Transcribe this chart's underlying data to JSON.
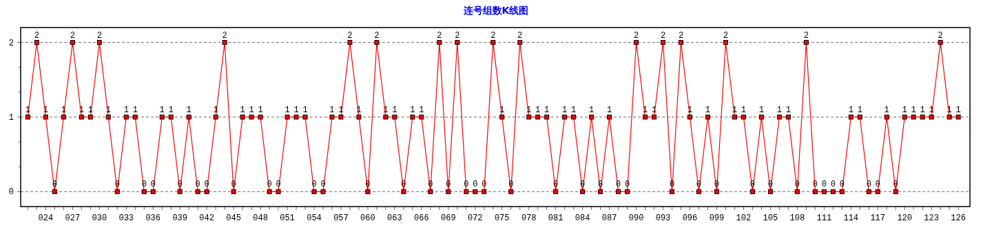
{
  "chart_data": {
    "type": "line",
    "title": "连号组数K线图",
    "x": [
      22,
      23,
      24,
      25,
      26,
      27,
      28,
      29,
      30,
      31,
      32,
      33,
      34,
      35,
      36,
      37,
      38,
      39,
      40,
      41,
      42,
      43,
      44,
      45,
      46,
      47,
      48,
      49,
      50,
      51,
      52,
      53,
      54,
      55,
      56,
      57,
      58,
      59,
      60,
      61,
      62,
      63,
      64,
      65,
      66,
      67,
      68,
      69,
      70,
      71,
      72,
      73,
      74,
      75,
      76,
      77,
      78,
      79,
      80,
      81,
      82,
      83,
      84,
      85,
      86,
      87,
      88,
      89,
      90,
      91,
      92,
      93,
      94,
      95,
      96,
      97,
      98,
      99,
      100,
      101,
      102,
      103,
      104,
      105,
      106,
      107,
      108,
      109,
      110,
      111,
      112,
      113,
      114,
      115,
      116,
      117,
      118,
      119,
      120,
      121,
      122,
      123,
      124,
      125,
      126
    ],
    "series": [
      {
        "color": "#ff0000",
        "values": [
          1,
          2,
          1,
          0,
          1,
          2,
          1,
          1,
          2,
          1,
          0,
          1,
          1,
          0,
          0,
          1,
          1,
          0,
          1,
          0,
          0,
          1,
          2,
          0,
          1,
          1,
          1,
          0,
          0,
          1,
          1,
          1,
          0,
          0,
          1,
          1,
          2,
          1,
          0,
          2,
          1,
          1,
          0,
          1,
          1,
          0,
          2,
          0,
          2,
          0,
          0,
          0,
          2,
          1,
          0,
          2,
          1,
          1,
          1,
          0,
          1,
          1,
          0,
          1,
          0,
          1,
          0,
          0,
          2,
          1,
          1,
          2,
          0,
          2,
          1,
          0,
          1,
          0,
          2,
          1,
          1,
          0,
          1,
          0,
          1,
          1,
          0,
          2,
          0,
          0,
          0,
          0,
          1,
          1,
          0,
          0,
          1,
          0,
          1,
          1,
          1,
          1,
          2,
          1,
          1
        ]
      }
    ],
    "marker": "square",
    "line_style": "solid",
    "data_labels": true,
    "grid": "y",
    "xlim": [
      21.2,
      127.3
    ],
    "xticks": [
      {
        "value": 22,
        "label": null
      },
      {
        "value": 23,
        "label": null
      },
      {
        "value": 24,
        "label": "024"
      },
      {
        "value": 25,
        "label": null
      },
      {
        "value": 26,
        "label": null
      },
      {
        "value": 27,
        "label": "027"
      },
      {
        "value": 28,
        "label": null
      },
      {
        "value": 29,
        "label": null
      },
      {
        "value": 30,
        "label": "030"
      },
      {
        "value": 31,
        "label": null
      },
      {
        "value": 32,
        "label": null
      },
      {
        "value": 33,
        "label": "033"
      },
      {
        "value": 34,
        "label": null
      },
      {
        "value": 35,
        "label": null
      },
      {
        "value": 36,
        "label": "036"
      },
      {
        "value": 37,
        "label": null
      },
      {
        "value": 38,
        "label": null
      },
      {
        "value": 39,
        "label": "039"
      },
      {
        "value": 40,
        "label": null
      },
      {
        "value": 41,
        "label": null
      },
      {
        "value": 42,
        "label": "042"
      },
      {
        "value": 43,
        "label": null
      },
      {
        "value": 44,
        "label": null
      },
      {
        "value": 45,
        "label": "045"
      },
      {
        "value": 46,
        "label": null
      },
      {
        "value": 47,
        "label": null
      },
      {
        "value": 48,
        "label": "048"
      },
      {
        "value": 49,
        "label": null
      },
      {
        "value": 50,
        "label": null
      },
      {
        "value": 51,
        "label": "051"
      },
      {
        "value": 52,
        "label": null
      },
      {
        "value": 53,
        "label": null
      },
      {
        "value": 54,
        "label": "054"
      },
      {
        "value": 55,
        "label": null
      },
      {
        "value": 56,
        "label": null
      },
      {
        "value": 57,
        "label": "057"
      },
      {
        "value": 58,
        "label": null
      },
      {
        "value": 59,
        "label": null
      },
      {
        "value": 60,
        "label": "060"
      },
      {
        "value": 61,
        "label": null
      },
      {
        "value": 62,
        "label": null
      },
      {
        "value": 63,
        "label": "063"
      },
      {
        "value": 64,
        "label": null
      },
      {
        "value": 65,
        "label": null
      },
      {
        "value": 66,
        "label": "066"
      },
      {
        "value": 67,
        "label": null
      },
      {
        "value": 68,
        "label": null
      },
      {
        "value": 69,
        "label": "069"
      },
      {
        "value": 70,
        "label": null
      },
      {
        "value": 71,
        "label": null
      },
      {
        "value": 72,
        "label": "072"
      },
      {
        "value": 73,
        "label": null
      },
      {
        "value": 74,
        "label": null
      },
      {
        "value": 75,
        "label": "075"
      },
      {
        "value": 76,
        "label": null
      },
      {
        "value": 77,
        "label": null
      },
      {
        "value": 78,
        "label": "078"
      },
      {
        "value": 79,
        "label": null
      },
      {
        "value": 80,
        "label": null
      },
      {
        "value": 81,
        "label": "081"
      },
      {
        "value": 82,
        "label": null
      },
      {
        "value": 83,
        "label": null
      },
      {
        "value": 84,
        "label": "084"
      },
      {
        "value": 85,
        "label": null
      },
      {
        "value": 86,
        "label": null
      },
      {
        "value": 87,
        "label": "087"
      },
      {
        "value": 88,
        "label": null
      },
      {
        "value": 89,
        "label": null
      },
      {
        "value": 90,
        "label": "090"
      },
      {
        "value": 91,
        "label": null
      },
      {
        "value": 92,
        "label": null
      },
      {
        "value": 93,
        "label": "093"
      },
      {
        "value": 94,
        "label": null
      },
      {
        "value": 95,
        "label": null
      },
      {
        "value": 96,
        "label": "096"
      },
      {
        "value": 97,
        "label": null
      },
      {
        "value": 98,
        "label": null
      },
      {
        "value": 99,
        "label": "099"
      },
      {
        "value": 100,
        "label": null
      },
      {
        "value": 101,
        "label": null
      },
      {
        "value": 102,
        "label": "102"
      },
      {
        "value": 103,
        "label": null
      },
      {
        "value": 104,
        "label": null
      },
      {
        "value": 105,
        "label": "105"
      },
      {
        "value": 106,
        "label": null
      },
      {
        "value": 107,
        "label": null
      },
      {
        "value": 108,
        "label": "108"
      },
      {
        "value": 109,
        "label": null
      },
      {
        "value": 110,
        "label": null
      },
      {
        "value": 111,
        "label": "111"
      },
      {
        "value": 112,
        "label": null
      },
      {
        "value": 113,
        "label": null
      },
      {
        "value": 114,
        "label": "114"
      },
      {
        "value": 115,
        "label": null
      },
      {
        "value": 116,
        "label": null
      },
      {
        "value": 117,
        "label": "117"
      },
      {
        "value": 118,
        "label": null
      },
      {
        "value": 119,
        "label": null
      },
      {
        "value": 120,
        "label": "120"
      },
      {
        "value": 121,
        "label": null
      },
      {
        "value": 122,
        "label": null
      },
      {
        "value": 123,
        "label": "123"
      },
      {
        "value": 124,
        "label": null
      },
      {
        "value": 125,
        "label": null
      },
      {
        "value": 126,
        "label": "126"
      }
    ],
    "ylim": [
      -0.2,
      2.2
    ],
    "yticks": [
      0,
      {
        "value": 0.333,
        "label": null
      },
      {
        "value": 0.667,
        "label": null
      },
      1,
      {
        "value": 1.333,
        "label": null
      },
      {
        "value": 1.667,
        "label": null
      },
      2
    ]
  }
}
